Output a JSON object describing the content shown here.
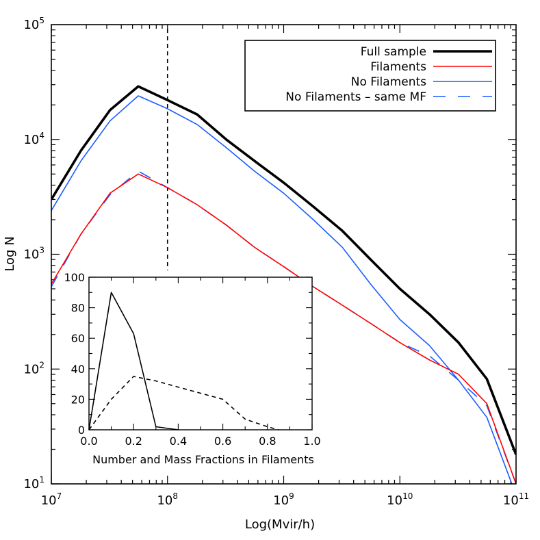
{
  "chart_data": [
    {
      "type": "line",
      "xlabel": "Log(Mvir/h)",
      "ylabel": "Log N",
      "xscale": "log",
      "yscale": "log",
      "xlim": [
        10000000.0,
        100000000000.0
      ],
      "ylim": [
        10,
        100000
      ],
      "x_ticks": [
        {
          "value": 10000000.0,
          "base": "10",
          "exp": "7"
        },
        {
          "value": 100000000.0,
          "base": "10",
          "exp": "8"
        },
        {
          "value": 1000000000.0,
          "base": "10",
          "exp": "9"
        },
        {
          "value": 10000000000.0,
          "base": "10",
          "exp": "10"
        },
        {
          "value": 100000000000.0,
          "base": "10",
          "exp": "11"
        }
      ],
      "y_ticks": [
        {
          "value": 10,
          "base": "10",
          "exp": "1"
        },
        {
          "value": 100,
          "base": "10",
          "exp": "2"
        },
        {
          "value": 1000,
          "base": "10",
          "exp": "3"
        },
        {
          "value": 10000,
          "base": "10",
          "exp": "4"
        },
        {
          "value": 100000,
          "base": "10",
          "exp": "5"
        }
      ],
      "vline": {
        "x": 100000000.0,
        "style": "dashed",
        "color": "#000000"
      },
      "legend_position": "top-right",
      "series": [
        {
          "name": "Full sample",
          "color": "#000000",
          "style": "solid-thick",
          "x": [
            10000000.0,
            18000000.0,
            32000000.0,
            56000000.0,
            100000000.0,
            180000000.0,
            320000000.0,
            560000000.0,
            1000000000.0,
            1800000000.0,
            3200000000.0,
            5600000000.0,
            10000000000.0,
            18000000000.0,
            32000000000.0,
            56000000000.0,
            100000000000.0
          ],
          "y": [
            3000,
            8000,
            18000,
            29000,
            22000,
            16500,
            10000,
            6500,
            4200,
            2600,
            1600,
            900,
            500,
            300,
            170,
            82,
            18
          ]
        },
        {
          "name": "Filaments",
          "color": "#ff0000",
          "style": "solid",
          "x": [
            10000000.0,
            18000000.0,
            32000000.0,
            56000000.0,
            100000000.0,
            180000000.0,
            320000000.0,
            560000000.0,
            1000000000.0,
            1800000000.0,
            3200000000.0,
            5600000000.0,
            10000000000.0,
            18000000000.0,
            32000000000.0,
            56000000000.0,
            100000000000.0
          ],
          "y": [
            550,
            1500,
            3400,
            5000,
            3800,
            2700,
            1800,
            1150,
            780,
            520,
            360,
            250,
            170,
            120,
            90,
            50,
            10
          ]
        },
        {
          "name": "No Filaments",
          "color": "#1a5cff",
          "style": "solid",
          "x": [
            10000000.0,
            18000000.0,
            32000000.0,
            56000000.0,
            100000000.0,
            180000000.0,
            320000000.0,
            560000000.0,
            1000000000.0,
            1800000000.0,
            3200000000.0,
            5600000000.0,
            10000000000.0,
            18000000000.0,
            32000000000.0,
            56000000000.0,
            100000000000.0
          ],
          "y": [
            2400,
            6500,
            14500,
            24000,
            18500,
            13500,
            8500,
            5300,
            3400,
            2000,
            1150,
            550,
            270,
            160,
            80,
            38,
            8
          ]
        },
        {
          "name": "No Filaments – same MF",
          "color": "#1a5cff",
          "style": "long-dash",
          "x": [
            10000000.0,
            18000000.0,
            32000000.0,
            56000000.0,
            100000000.0,
            180000000.0,
            320000000.0,
            560000000.0,
            1000000000.0,
            1800000000.0,
            3200000000.0,
            5600000000.0,
            10000000000.0,
            18000000000.0,
            32000000000.0,
            56000000000.0,
            100000000000.0
          ],
          "y": [
            520,
            1500,
            3300,
            5300,
            3800,
            2700,
            1800,
            1150,
            780,
            520,
            360,
            250,
            170,
            130,
            80,
            48,
            10
          ]
        }
      ]
    },
    {
      "type": "line",
      "xlabel": "Number and Mass Fractions in Filaments",
      "ylabel": "",
      "xlim": [
        0,
        1
      ],
      "ylim": [
        0,
        100
      ],
      "x_ticks": [
        "0.0",
        "0.2",
        "0.4",
        "0.6",
        "0.8",
        "1.0"
      ],
      "y_ticks": [
        "0",
        "20",
        "40",
        "60",
        "80",
        "100"
      ],
      "x_tick_values": [
        0,
        0.2,
        0.4,
        0.6,
        0.8,
        1.0
      ],
      "y_tick_values": [
        0,
        20,
        40,
        60,
        80,
        100
      ],
      "series": [
        {
          "style": "solid",
          "color": "#000000",
          "x": [
            0,
            0.1,
            0.2,
            0.3,
            0.4
          ],
          "y": [
            0,
            90,
            63,
            2,
            0
          ]
        },
        {
          "style": "dashed",
          "color": "#000000",
          "x": [
            0,
            0.1,
            0.2,
            0.3,
            0.4,
            0.5,
            0.6,
            0.7,
            0.8,
            0.85
          ],
          "y": [
            0,
            20,
            35,
            32,
            28,
            24,
            20,
            7,
            2,
            0
          ]
        }
      ]
    }
  ]
}
